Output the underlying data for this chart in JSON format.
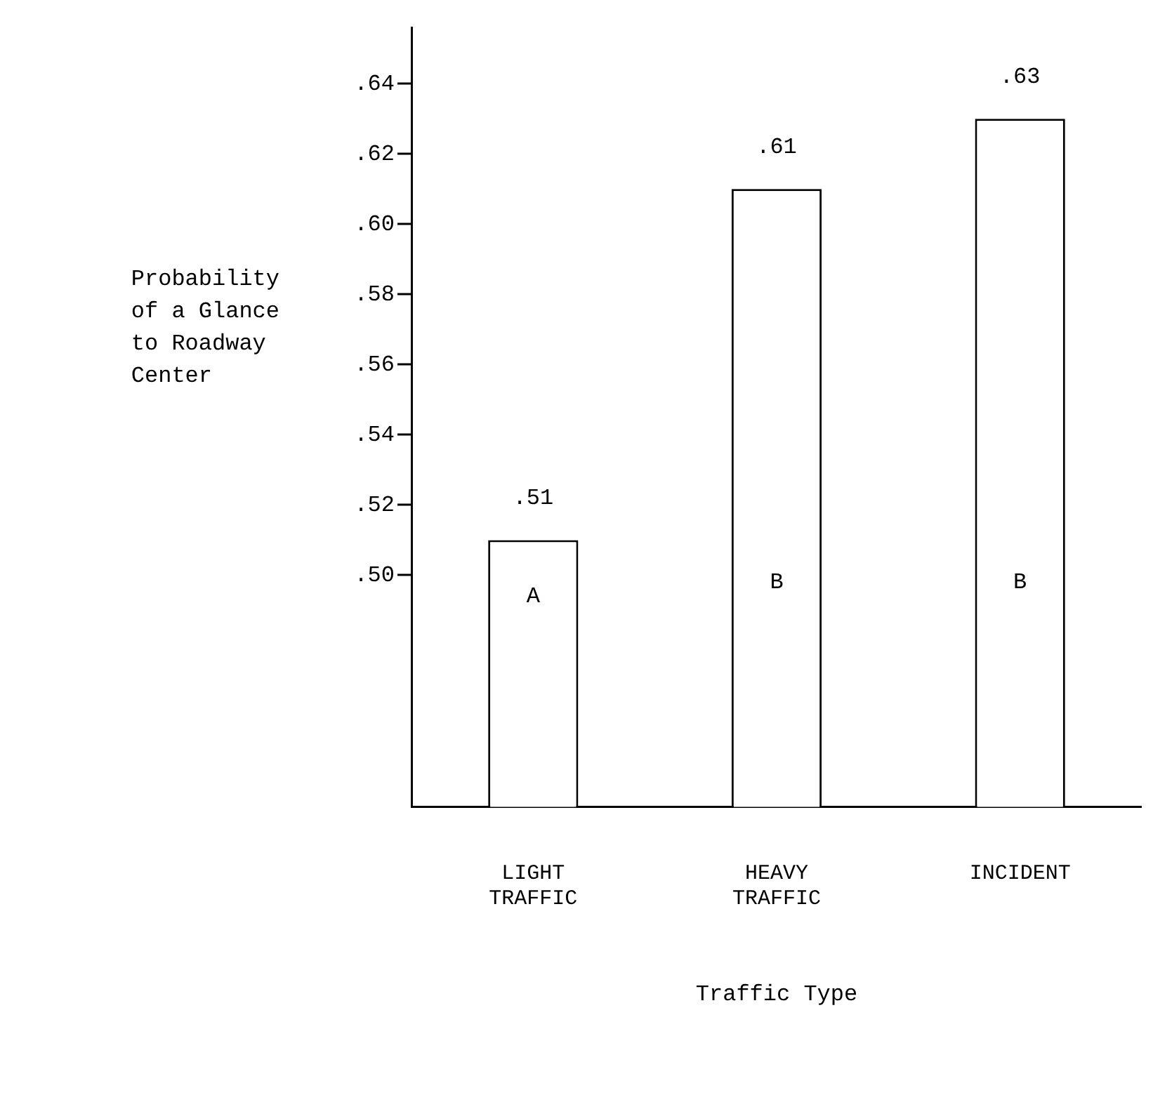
{
  "chart_data": {
    "type": "bar",
    "xlabel": "Traffic Type",
    "ylabel": "Probability of a Glance to Roadway Center",
    "categories": [
      "LIGHT TRAFFIC",
      "HEAVY TRAFFIC",
      "INCIDENT"
    ],
    "values": [
      0.51,
      0.61,
      0.63
    ],
    "value_labels": [
      ".51",
      ".61",
      ".63"
    ],
    "color": "#ffffff",
    "ylim": [
      0.434,
      0.656
    ],
    "yticks": [
      {
        "value": 0.5,
        "label": ".50"
      },
      {
        "value": 0.52,
        "label": ".52"
      },
      {
        "value": 0.54,
        "label": ".54"
      },
      {
        "value": 0.56,
        "label": ".56"
      },
      {
        "value": 0.58,
        "label": ".58"
      },
      {
        "value": 0.6,
        "label": ".60"
      },
      {
        "value": 0.62,
        "label": ".62"
      },
      {
        "value": 0.64,
        "label": ".64"
      }
    ],
    "annotations": [
      "A",
      "B",
      "B"
    ],
    "grid": false,
    "legend": false
  }
}
